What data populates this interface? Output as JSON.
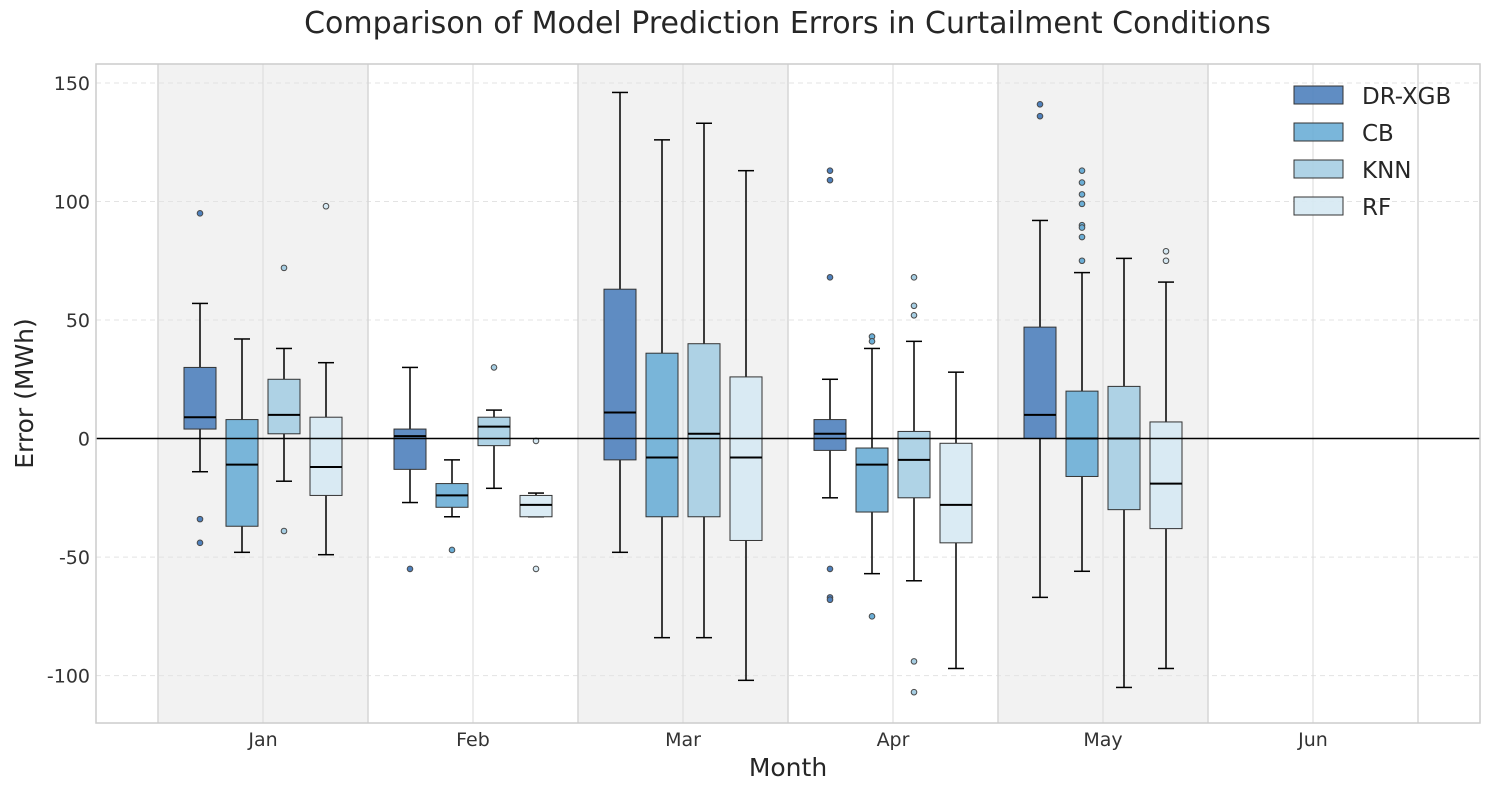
{
  "chart_data": {
    "type": "box",
    "title": "Comparison of Model Prediction Errors in Curtailment Conditions",
    "xlabel": "Month",
    "ylabel": "Error (MWh)",
    "categories": [
      "Jan",
      "Feb",
      "Mar",
      "Apr",
      "May",
      "Jun"
    ],
    "ylim": [
      -120,
      158
    ],
    "yticks": [
      150,
      100,
      50,
      0,
      -50,
      -100
    ],
    "reference_line_y": 0,
    "grid": true,
    "shaded_months": [
      "Jan",
      "Mar",
      "May"
    ],
    "legend_position": "top-right",
    "series": [
      {
        "name": "DR-XGB",
        "color": "#4f81bd",
        "boxes": [
          {
            "month": "Jan",
            "q1": 4,
            "median": 9,
            "q3": 30,
            "whisker_low": -14,
            "whisker_high": 57,
            "outliers": [
              95,
              -34,
              -44
            ]
          },
          {
            "month": "Feb",
            "q1": -13,
            "median": 1,
            "q3": 4,
            "whisker_low": -27,
            "whisker_high": 30,
            "outliers": [
              -55
            ]
          },
          {
            "month": "Mar",
            "q1": -9,
            "median": 11,
            "q3": 63,
            "whisker_low": -48,
            "whisker_high": 146,
            "outliers": []
          },
          {
            "month": "Apr",
            "q1": -5,
            "median": 2,
            "q3": 8,
            "whisker_low": -25,
            "whisker_high": 25,
            "outliers": [
              113,
              109,
              68,
              -55,
              -67,
              -68
            ]
          },
          {
            "month": "May",
            "q1": 0,
            "median": 10,
            "q3": 47,
            "whisker_low": -67,
            "whisker_high": 92,
            "outliers": [
              141,
              136
            ]
          }
        ]
      },
      {
        "name": "CB",
        "color": "#6baed6",
        "boxes": [
          {
            "month": "Jan",
            "q1": -37,
            "median": -11,
            "q3": 8,
            "whisker_low": -48,
            "whisker_high": 42,
            "outliers": []
          },
          {
            "month": "Feb",
            "q1": -29,
            "median": -24,
            "q3": -19,
            "whisker_low": -33,
            "whisker_high": -9,
            "outliers": [
              -47
            ]
          },
          {
            "month": "Mar",
            "q1": -33,
            "median": -8,
            "q3": 36,
            "whisker_low": -84,
            "whisker_high": 126,
            "outliers": []
          },
          {
            "month": "Apr",
            "q1": -31,
            "median": -11,
            "q3": -4,
            "whisker_low": -57,
            "whisker_high": 38,
            "outliers": [
              43,
              41,
              -75
            ]
          },
          {
            "month": "May",
            "q1": -16,
            "median": 0,
            "q3": 20,
            "whisker_low": -56,
            "whisker_high": 70,
            "outliers": [
              113,
              108,
              103,
              99,
              90,
              89,
              85,
              75
            ]
          }
        ]
      },
      {
        "name": "KNN",
        "color": "#a6cee3",
        "boxes": [
          {
            "month": "Jan",
            "q1": 2,
            "median": 10,
            "q3": 25,
            "whisker_low": -18,
            "whisker_high": 38,
            "outliers": [
              72,
              -39
            ]
          },
          {
            "month": "Feb",
            "q1": -3,
            "median": 5,
            "q3": 9,
            "whisker_low": -21,
            "whisker_high": 12,
            "outliers": [
              30
            ]
          },
          {
            "month": "Mar",
            "q1": -33,
            "median": 2,
            "q3": 40,
            "whisker_low": -84,
            "whisker_high": 133,
            "outliers": []
          },
          {
            "month": "Apr",
            "q1": -25,
            "median": -9,
            "q3": 3,
            "whisker_low": -60,
            "whisker_high": 41,
            "outliers": [
              68,
              56,
              52,
              -94,
              -107
            ]
          },
          {
            "month": "May",
            "q1": -30,
            "median": 0,
            "q3": 22,
            "whisker_low": -105,
            "whisker_high": 76,
            "outliers": []
          }
        ]
      },
      {
        "name": "RF",
        "color": "#d6e9f3",
        "boxes": [
          {
            "month": "Jan",
            "q1": -24,
            "median": -12,
            "q3": 9,
            "whisker_low": -49,
            "whisker_high": 32,
            "outliers": [
              98
            ]
          },
          {
            "month": "Feb",
            "q1": -33,
            "median": -28,
            "q3": -24,
            "whisker_low": -33,
            "whisker_high": -23,
            "outliers": [
              -1,
              -55
            ]
          },
          {
            "month": "Mar",
            "q1": -43,
            "median": -8,
            "q3": 26,
            "whisker_low": -102,
            "whisker_high": 113,
            "outliers": []
          },
          {
            "month": "Apr",
            "q1": -44,
            "median": -28,
            "q3": -2,
            "whisker_low": -97,
            "whisker_high": 28,
            "outliers": []
          },
          {
            "month": "May",
            "q1": -38,
            "median": -19,
            "q3": 7,
            "whisker_low": -97,
            "whisker_high": 66,
            "outliers": [
              79,
              75
            ]
          }
        ]
      }
    ]
  }
}
